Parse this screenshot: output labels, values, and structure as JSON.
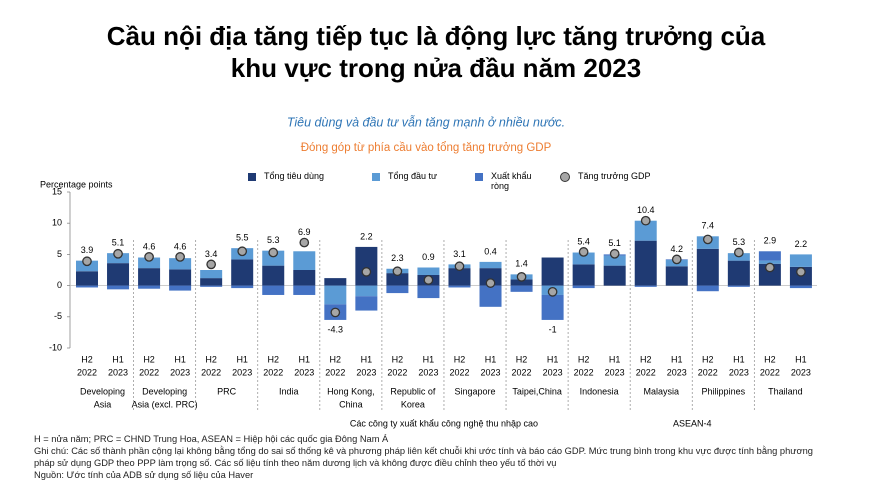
{
  "chart_data": {
    "type": "stacked_bar_dot",
    "title": [
      "Cầu nội địa tăng tiếp tục là động lực tăng trưởng của",
      "khu vực trong nửa đầu năm 2023"
    ],
    "subtitle": "Tiêu dùng và đầu tư vẫn tăng mạnh ở nhiều nước.",
    "chart_title": "Đóng góp từ phía cầu vào tổng tăng trưởng GDP",
    "y_axis_label": "Percentage points",
    "categories": [
      [
        "H2",
        "2022"
      ],
      [
        "H1",
        "2023"
      ],
      [
        "H2",
        "2022"
      ],
      [
        "H1",
        "2023"
      ],
      [
        "H2",
        "2022"
      ],
      [
        "H1",
        "2023"
      ],
      [
        "H2",
        "2022"
      ],
      [
        "H1",
        "2023"
      ],
      [
        "H2",
        "2022"
      ],
      [
        "H1",
        "2023"
      ],
      [
        "H2",
        "2022"
      ],
      [
        "H1",
        "2023"
      ],
      [
        "H2",
        "2022"
      ],
      [
        "H1",
        "2023"
      ],
      [
        "H2",
        "2022"
      ],
      [
        "H1",
        "2023"
      ],
      [
        "H2",
        "2022"
      ],
      [
        "H1",
        "2023"
      ],
      [
        "H2",
        "2022"
      ],
      [
        "H1",
        "2023"
      ],
      [
        "H2",
        "2022"
      ],
      [
        "H1",
        "2023"
      ],
      [
        "H2",
        "2022"
      ],
      [
        "H1",
        "2023"
      ]
    ],
    "groups": [
      [
        "Developing",
        "Asia"
      ],
      [
        "Developing",
        "Asia (excl. PRC)"
      ],
      [
        "PRC"
      ],
      [
        "India"
      ],
      [
        "Hong Kong,",
        "China"
      ],
      [
        "Republic of",
        "Korea"
      ],
      [
        "Singapore"
      ],
      [
        "Taipei,China"
      ],
      [
        "Indonesia"
      ],
      [
        "Malaysia"
      ],
      [
        "Philippines"
      ],
      [
        "Thailand"
      ]
    ],
    "supergroups": [
      {
        "label": "Các công ty xuất khẩu công nghệ thu nhập cao",
        "from": 4,
        "to": 7
      },
      {
        "label": "ASEAN-4",
        "from": 8,
        "to": 11
      }
    ],
    "series": [
      {
        "name": "Tổng tiêu dùng",
        "color": "#1f3a73",
        "values": [
          2.3,
          3.6,
          2.8,
          2.6,
          1.2,
          4.2,
          3.2,
          2.5,
          1.2,
          6.2,
          2.0,
          1.7,
          2.8,
          2.8,
          1.0,
          4.5,
          3.4,
          3.2,
          7.2,
          3.1,
          5.9,
          4.0,
          3.5,
          3.0
        ]
      },
      {
        "name": "Tổng đầu tư",
        "color": "#5b9bd5",
        "values": [
          1.7,
          1.6,
          1.7,
          1.8,
          1.3,
          1.8,
          2.4,
          3.0,
          -3.0,
          -1.7,
          0.7,
          1.2,
          0.6,
          1.0,
          0.8,
          -1.5,
          1.9,
          1.6,
          3.2,
          1.0,
          2.0,
          1.2,
          0.5,
          2.0
        ]
      },
      {
        "name": "Xuất khẩu ròng",
        "color": "#4472c4",
        "values": [
          -0.3,
          -0.6,
          -0.5,
          -0.8,
          -0.2,
          -0.4,
          -1.5,
          -1.5,
          -2.5,
          -2.3,
          -1.2,
          -2.0,
          -0.3,
          -3.4,
          -1.0,
          -4.0,
          -0.4,
          0.2,
          -0.2,
          0.1,
          -0.9,
          -0.2,
          1.5,
          -0.4
        ]
      }
    ],
    "gdp": {
      "name": "Tăng trưởng GDP",
      "color": "#a6a6a6",
      "values": [
        3.9,
        5.1,
        4.6,
        4.6,
        3.4,
        5.5,
        5.3,
        6.9,
        -4.3,
        2.2,
        2.3,
        0.9,
        3.1,
        0.4,
        1.4,
        -1.0,
        5.4,
        5.1,
        10.4,
        4.2,
        7.4,
        5.3,
        2.9,
        2.2
      ]
    },
    "ylim": [
      -10,
      15
    ],
    "yticks": [
      15,
      10,
      5,
      0,
      -5,
      -10
    ],
    "notes": [
      "H = nửa năm; PRC = CHND Trung Hoa, ASEAN = Hiệp hội các quốc gia Đông Nam Á",
      "Ghi chú: Các số thành phần cộng lại không bằng tổng do sai số thống kê và phương pháp liên kết chuỗi khi ước tính và báo cáo GDP. Mức trung bình trong khu vực được tính bằng phương pháp sử dụng GDP theo PPP làm trọng số. Các số liệu tính theo năm dương lịch và không được điều chỉnh theo yếu tố thời vụ",
      "Nguồn: Ước tính của ADB sử dụng số liệu của Haver"
    ]
  }
}
